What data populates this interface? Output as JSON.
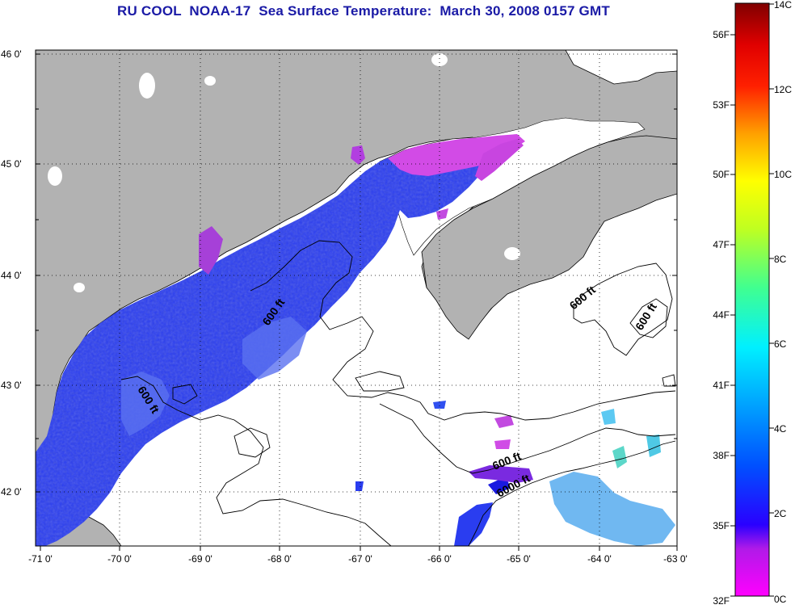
{
  "title": "RU COOL  NOAA-17  Sea Surface Temperature:  March 30, 2008 0157 GMT",
  "map": {
    "lat_ticks": [
      "46 0'",
      "45 0'",
      "44 0'",
      "43 0'",
      "42 0'"
    ],
    "lon_ticks": [
      "-71 0'",
      "-70 0'",
      "-69 0'",
      "-68 0'",
      "-67 0'",
      "-66 0'",
      "-65 0'",
      "-64 0'",
      "-63 0'"
    ],
    "contour_labels": [
      "600 ft",
      "600 ft",
      "600 ft",
      "600 ft",
      "600 ft",
      "6000 ft"
    ],
    "colors": {
      "land": "#b2b2b2",
      "water_nodata": "#ffffff",
      "sst_cold": "#2a3df0",
      "sst_purple": "#b23ee0",
      "sst_magenta": "#e84be6"
    }
  },
  "colorbar": {
    "celsius_labels": [
      "14C",
      "12C",
      "10C",
      "8C",
      "6C",
      "4C",
      "2C",
      "0C"
    ],
    "fahrenheit_labels": [
      "56F",
      "53F",
      "50F",
      "47F",
      "44F",
      "41F",
      "38F",
      "35F",
      "32F"
    ],
    "colors": [
      "#ff00ff",
      "#7a1ae0",
      "#0000ff",
      "#0080ff",
      "#00ffff",
      "#40ff80",
      "#c0ff00",
      "#ffff00",
      "#ff8000",
      "#ff0000",
      "#c00000",
      "#800000"
    ]
  }
}
